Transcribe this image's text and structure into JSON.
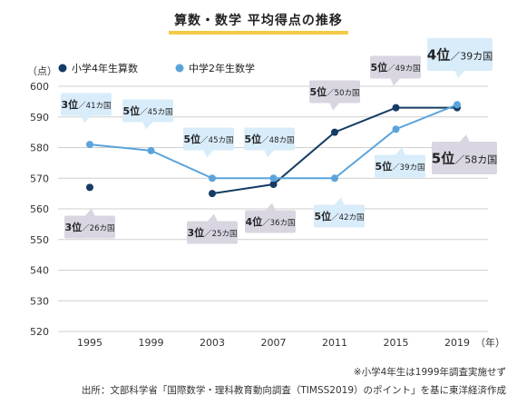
{
  "title": "算数・数学 平均得点の推移",
  "notes": {
    "footnote": "※小学4年生は1999年調査実施せず",
    "source": "出所：文部科学省「国際数学・理科教育動向調査（TIMSS2019）のポイント」を基に東洋経済作成"
  },
  "chart_data": {
    "type": "line",
    "title": "算数・数学 平均得点の推移",
    "xlabel": "（年）",
    "ylabel": "（点）",
    "x": [
      1995,
      1999,
      2003,
      2007,
      2011,
      2015,
      2019
    ],
    "x_tick_labels": [
      "1995",
      "1999",
      "2003",
      "2007",
      "2011",
      "2015",
      "2019"
    ],
    "ylim": [
      520,
      600
    ],
    "y_ticks": [
      520,
      530,
      540,
      550,
      560,
      570,
      580,
      590,
      600
    ],
    "grid": true,
    "legend_position": "top-left",
    "series": [
      {
        "name": "小学4年生算数",
        "color": "#143c64",
        "values": [
          567,
          null,
          565,
          568,
          585,
          593,
          593
        ],
        "labels": [
          {
            "rank": "3位",
            "total": "26カ国",
            "style": "gray"
          },
          null,
          {
            "rank": "3位",
            "total": "25カ国",
            "style": "gray"
          },
          {
            "rank": "4位",
            "total": "36カ国",
            "style": "gray"
          },
          {
            "rank": "5位",
            "total": "50カ国",
            "style": "gray"
          },
          {
            "rank": "5位",
            "total": "49カ国",
            "style": "gray"
          },
          {
            "rank": "5位",
            "total": "58カ国",
            "style": "gray-large"
          }
        ]
      },
      {
        "name": "中学2年生数学",
        "color": "#5aa4dc",
        "values": [
          581,
          579,
          570,
          570,
          570,
          586,
          594
        ],
        "labels": [
          {
            "rank": "3位",
            "total": "41カ国",
            "style": "blue"
          },
          {
            "rank": "5位",
            "total": "45カ国",
            "style": "blue"
          },
          {
            "rank": "5位",
            "total": "45カ国",
            "style": "blue"
          },
          {
            "rank": "5位",
            "total": "48カ国",
            "style": "blue"
          },
          {
            "rank": "5位",
            "total": "42カ国",
            "style": "blue"
          },
          {
            "rank": "5位",
            "total": "39カ国",
            "style": "blue"
          },
          {
            "rank": "4位",
            "total": "39カ国",
            "style": "blue-large"
          }
        ]
      }
    ]
  }
}
